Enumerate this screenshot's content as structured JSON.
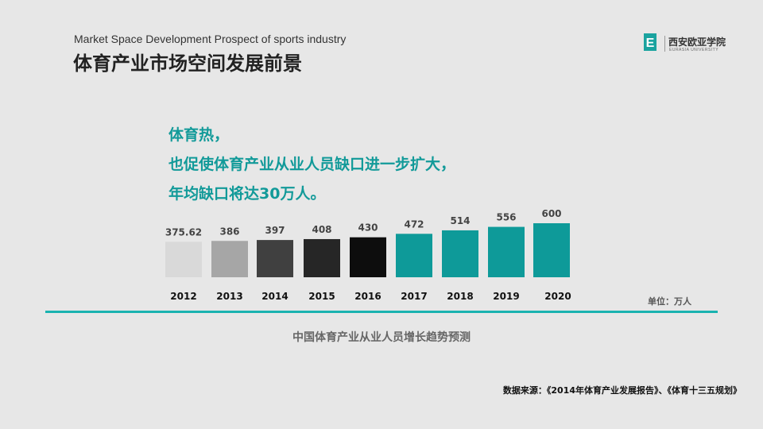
{
  "header": {
    "subtitle_en": "Market Space Development Prospect of sports industry",
    "title_cn": "体育产业市场空间发展前景"
  },
  "logo": {
    "name_cn": "西安欧亚学院",
    "name_en": "EURASIA UNIVERSITY",
    "mark_letter": "E"
  },
  "headline": {
    "line1": "体育热，",
    "line2": "也促使体育产业从业人员缺口进一步扩大，",
    "line3": "年均缺口将达30万人。"
  },
  "chart_data": {
    "type": "bar",
    "categories": [
      "2012",
      "2013",
      "2014",
      "2015",
      "2016",
      "2017",
      "2018",
      "2019",
      "2020"
    ],
    "values": [
      375.62,
      386,
      397,
      408,
      430,
      472,
      514,
      556,
      600
    ],
    "value_labels": [
      "375.62",
      "386",
      "397",
      "408",
      "430",
      "472",
      "514",
      "556",
      "600"
    ],
    "bar_colors": [
      "#d9d9d9",
      "#a6a6a6",
      "#404040",
      "#262626",
      "#0d0d0d",
      "#0e9a99",
      "#0e9a99",
      "#0e9a99",
      "#0e9a99"
    ],
    "title": "中国体育产业从业人员增长趋势预测",
    "unit_label": "单位：万人",
    "grid": false,
    "legend": "none"
  },
  "source": "数据来源：《2014年体育产业发展报告》、《体育十三五规划》",
  "colors": {
    "accent": "#129a99",
    "divider": "#1ab3b0",
    "background": "#e7e7e7"
  }
}
